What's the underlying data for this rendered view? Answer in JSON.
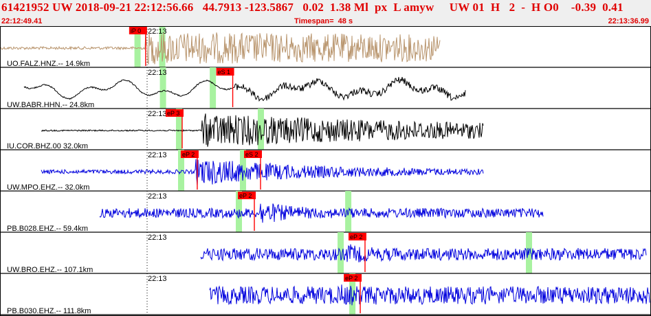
{
  "header": {
    "event_line": "61421952 UW 2018-09-21 22:12:56.66   44.7913 -123.5867   0.02  1.38 Ml  px  L amyw     UW 01  H   2  -  H O0    -0.39  0.41",
    "start_time": "22:12:49.41",
    "timespan": "Timespan=  48 s",
    "end_time": "22:13:36.99"
  },
  "colors": {
    "header_text": "#e00000",
    "pick_fill": "#ff0000",
    "window_fill": "#a8f2a0"
  },
  "panels": [
    {
      "station": "UO.FALZ.HNZ.-- 14.9km",
      "time": "22:13",
      "color": "#b8946c",
      "picks": [
        {
          "label": "iP 0",
          "t": 0.2237
        }
      ],
      "windows": [
        0.2065,
        0.2445
      ]
    },
    {
      "station": "UW.BABR.HHN.-- 24.8km",
      "time": "22:13",
      "color": "#000000",
      "picks": [
        {
          "label": "eS 1",
          "t": 0.3575
        }
      ],
      "windows": [
        0.2456,
        0.3222
      ]
    },
    {
      "station": "IU.COR.BHZ.00 32.0km",
      "time": "22:13",
      "color": "#000000",
      "picks": [
        {
          "label": "eP 3",
          "t": 0.2798
        }
      ],
      "windows": [
        0.2703,
        0.396
      ]
    },
    {
      "station": "UW.MPO.EHZ.-- 32.0km",
      "time": "22:13",
      "color": "#0000dd",
      "picks": [
        {
          "label": "eP 2",
          "t": 0.303
        },
        {
          "label": "eS 2",
          "t": 0.4002
        }
      ],
      "windows": [
        0.2735,
        0.3685
      ]
    },
    {
      "station": "PB.B028.EHZ.-- 59.4km",
      "time": "22:13",
      "color": "#0000dd",
      "picks": [
        {
          "label": "eP 2",
          "t": 0.3907
        }
      ],
      "windows": [
        0.3622,
        0.5302
      ]
    },
    {
      "station": "UW.BRO.EHZ.-- 107.1km",
      "time": "22:13",
      "color": "#0000dd",
      "picks": [
        {
          "label": "eP 2",
          "t": 0.5607
        }
      ],
      "windows": [
        0.5185,
        0.8078
      ]
    },
    {
      "station": "PB.B030.EHZ.-- 111.8km",
      "time": "22:13",
      "color": "#0000dd",
      "picks": [
        {
          "label": "eP 2",
          "t": 0.5534
        }
      ],
      "windows": [
        0.5365
      ]
    }
  ]
}
